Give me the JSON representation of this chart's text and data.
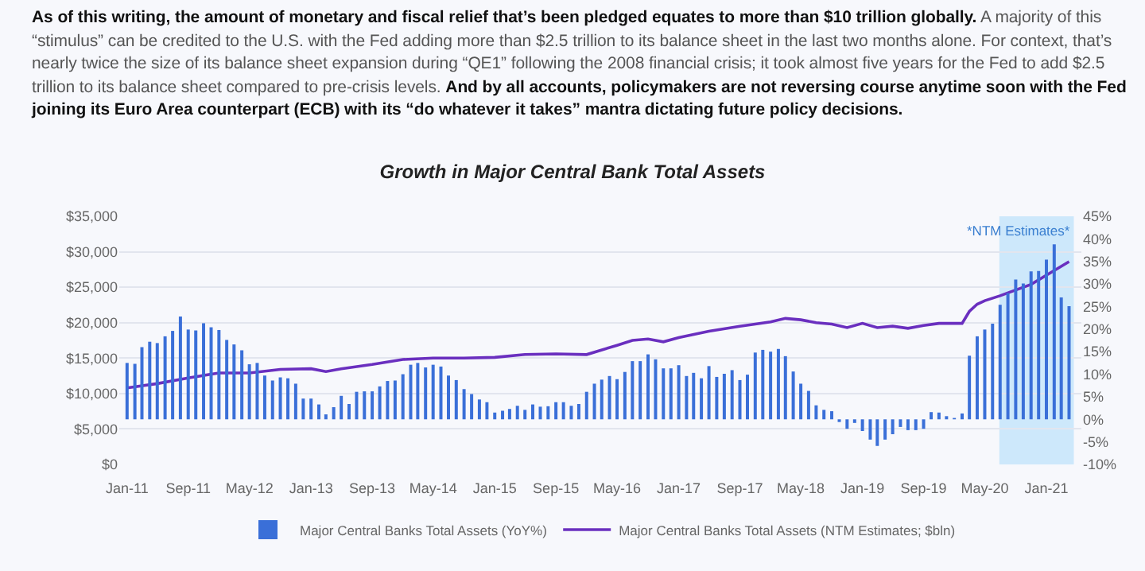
{
  "chart_data": {
    "type": "bar",
    "title": "Growth in Major Central Bank Total Assets",
    "annotations": [
      "As of this writing, the amount of monetary and fiscal relief that’s been pledged equates to more than $10 trillion globally.",
      "A majority of this “stimulus” can be credited to the U.S. with the Fed adding more than $2.5 trillion to its balance sheet in the last two months alone. For context, that’s nearly twice the size of its balance sheet expansion during “QE1” following the 2008 financial crisis; it took almost five years for the Fed to add $2.5 trillion to its balance sheet compared to pre-crisis levels.",
      "And by all accounts, policymakers are not reversing course anytime soon with the Fed joining its Euro Area counterpart (ECB) with its “do whatever it takes” mantra dictating future policy decisions."
    ],
    "x": [
      "2011-01",
      "2011-02",
      "2011-03",
      "2011-04",
      "2011-05",
      "2011-06",
      "2011-07",
      "2011-08",
      "2011-09",
      "2011-10",
      "2011-11",
      "2011-12",
      "2012-01",
      "2012-02",
      "2012-03",
      "2012-04",
      "2012-05",
      "2012-06",
      "2012-07",
      "2012-08",
      "2012-09",
      "2012-10",
      "2012-11",
      "2012-12",
      "2013-01",
      "2013-02",
      "2013-03",
      "2013-04",
      "2013-05",
      "2013-06",
      "2013-07",
      "2013-08",
      "2013-09",
      "2013-10",
      "2013-11",
      "2013-12",
      "2014-01",
      "2014-02",
      "2014-03",
      "2014-04",
      "2014-05",
      "2014-06",
      "2014-07",
      "2014-08",
      "2014-09",
      "2014-10",
      "2014-11",
      "2014-12",
      "2015-01",
      "2015-02",
      "2015-03",
      "2015-04",
      "2015-05",
      "2015-06",
      "2015-07",
      "2015-08",
      "2015-09",
      "2015-10",
      "2015-11",
      "2015-12",
      "2016-01",
      "2016-02",
      "2016-03",
      "2016-04",
      "2016-05",
      "2016-06",
      "2016-07",
      "2016-08",
      "2016-09",
      "2016-10",
      "2016-11",
      "2016-12",
      "2017-01",
      "2017-02",
      "2017-03",
      "2017-04",
      "2017-05",
      "2017-06",
      "2017-07",
      "2017-08",
      "2017-09",
      "2017-10",
      "2017-11",
      "2017-12",
      "2018-01",
      "2018-02",
      "2018-03",
      "2018-04",
      "2018-05",
      "2018-06",
      "2018-07",
      "2018-08",
      "2018-09",
      "2018-10",
      "2018-11",
      "2018-12",
      "2019-01",
      "2019-02",
      "2019-03",
      "2019-04",
      "2019-05",
      "2019-06",
      "2019-07",
      "2019-08",
      "2019-09",
      "2019-10",
      "2019-11",
      "2019-12",
      "2020-01",
      "2020-02",
      "2020-03",
      "2020-04",
      "2020-05",
      "2020-06",
      "2020-07",
      "2020-08",
      "2020-09",
      "2020-10",
      "2020-11",
      "2020-12",
      "2021-01",
      "2021-02",
      "2021-03",
      "2021-04"
    ],
    "series": [
      {
        "name": "Major Central Banks Total Assets (YoY%)",
        "axis": "y2",
        "color": "#3a6fd8",
        "values": [
          12.5,
          12.3,
          16.0,
          17.2,
          16.9,
          18.4,
          19.6,
          22.8,
          19.9,
          19.7,
          21.3,
          20.4,
          19.8,
          17.6,
          16.6,
          15.3,
          12.2,
          12.5,
          9.7,
          8.6,
          9.3,
          9.1,
          7.9,
          4.6,
          4.6,
          3.3,
          1.1,
          2.7,
          5.2,
          3.4,
          6.1,
          6.2,
          6.2,
          7.3,
          8.5,
          8.6,
          10.0,
          12.1,
          12.5,
          11.5,
          12.1,
          11.7,
          9.7,
          8.7,
          6.7,
          5.6,
          4.4,
          3.8,
          1.5,
          1.9,
          2.3,
          3.0,
          2.1,
          3.3,
          2.8,
          2.9,
          3.8,
          3.8,
          3.0,
          3.4,
          6.1,
          7.9,
          8.8,
          9.6,
          8.9,
          10.5,
          12.9,
          12.9,
          14.4,
          13.3,
          11.3,
          11.3,
          12.0,
          9.6,
          10.3,
          9.1,
          11.8,
          9.4,
          10.1,
          10.9,
          8.7,
          9.9,
          14.8,
          15.4,
          15.0,
          15.6,
          14.0,
          10.6,
          7.9,
          6.3,
          3.1,
          2.1,
          1.8,
          -0.6,
          -2.1,
          -0.8,
          -2.6,
          -4.5,
          -5.9,
          -4.5,
          -3.3,
          -1.7,
          -2.4,
          -2.4,
          -2.1,
          1.6,
          1.5,
          0.7,
          0.3,
          1.3,
          14.1,
          18.4,
          19.9,
          21.2,
          25.4,
          28.0,
          31.0,
          30.1,
          32.8,
          32.9,
          35.4,
          38.8,
          27.0,
          25.1
        ]
      },
      {
        "name": "Major Central Banks Total Assets (NTM Estimates; $bln)",
        "type": "line",
        "color": "#6a2fbf",
        "x": [
          "2011-01",
          "2011-05",
          "2011-09",
          "2012-01",
          "2012-05",
          "2012-09",
          "2013-01",
          "2013-03",
          "2013-05",
          "2013-09",
          "2014-01",
          "2014-05",
          "2014-09",
          "2015-01",
          "2015-05",
          "2015-09",
          "2016-01",
          "2016-05",
          "2016-07",
          "2016-09",
          "2016-11",
          "2017-01",
          "2017-05",
          "2017-09",
          "2018-01",
          "2018-03",
          "2018-05",
          "2018-07",
          "2018-09",
          "2018-11",
          "2019-01",
          "2019-03",
          "2019-05",
          "2019-07",
          "2019-09",
          "2019-11",
          "2020-01",
          "2020-02",
          "2020-03",
          "2020-04",
          "2020-05",
          "2020-07",
          "2020-11",
          "2021-04"
        ],
        "values": [
          10800,
          11400,
          12200,
          12900,
          12900,
          13400,
          13500,
          13100,
          13500,
          14100,
          14800,
          15000,
          15000,
          15100,
          15500,
          15600,
          15500,
          16800,
          17500,
          17700,
          17300,
          17900,
          18800,
          19500,
          20100,
          20600,
          20400,
          20000,
          19800,
          19300,
          19900,
          19300,
          19500,
          19200,
          19600,
          19900,
          19900,
          19900,
          21600,
          22600,
          23100,
          23800,
          25400,
          28600
        ]
      }
    ],
    "xlim": [
      "2010-12-01",
      "2021-05-20"
    ],
    "xticks": [
      {
        "value": "2011-01",
        "label": "Jan-11"
      },
      {
        "value": "2011-09",
        "label": "Sep-11"
      },
      {
        "value": "2012-05",
        "label": "May-12"
      },
      {
        "value": "2013-01",
        "label": "Jan-13"
      },
      {
        "value": "2013-09",
        "label": "Sep-13"
      },
      {
        "value": "2014-05",
        "label": "May-14"
      },
      {
        "value": "2015-01",
        "label": "Jan-15"
      },
      {
        "value": "2015-09",
        "label": "Sep-15"
      },
      {
        "value": "2016-05",
        "label": "May-16"
      },
      {
        "value": "2017-01",
        "label": "Jan-17"
      },
      {
        "value": "2017-09",
        "label": "Sep-17"
      },
      {
        "value": "2018-05",
        "label": "May-18"
      },
      {
        "value": "2019-01",
        "label": "Jan-19"
      },
      {
        "value": "2019-09",
        "label": "Sep-19"
      },
      {
        "value": "2020-05",
        "label": "May-20"
      },
      {
        "value": "2021-01",
        "label": "Jan-21"
      }
    ],
    "ylim": [
      0,
      35000
    ],
    "yticks": [
      {
        "value": 0,
        "label": "$0"
      },
      {
        "value": 5000,
        "label": "$5,000"
      },
      {
        "value": 10000,
        "label": "$10,000"
      },
      {
        "value": 15000,
        "label": "$15,000"
      },
      {
        "value": 20000,
        "label": "$20,000"
      },
      {
        "value": 25000,
        "label": "$25,000"
      },
      {
        "value": 30000,
        "label": "$30,000"
      },
      {
        "value": 35000,
        "label": "$35,000"
      }
    ],
    "y2lim": [
      -10,
      45
    ],
    "y2ticks": [
      {
        "value": -10,
        "label": "-10%"
      },
      {
        "value": -5,
        "label": "-5%"
      },
      {
        "value": 0,
        "label": "0%"
      },
      {
        "value": 5,
        "label": "5%"
      },
      {
        "value": 10,
        "label": "10%"
      },
      {
        "value": 15,
        "label": "15%"
      },
      {
        "value": 20,
        "label": "20%"
      },
      {
        "value": 25,
        "label": "25%"
      },
      {
        "value": 30,
        "label": "30%"
      },
      {
        "value": 35,
        "label": "35%"
      },
      {
        "value": 40,
        "label": "40%"
      },
      {
        "value": 45,
        "label": "45%"
      }
    ],
    "grid": "y",
    "legend": "bottom",
    "bands": [
      {
        "axis": "x",
        "from": "2020-06-28",
        "to": "2021-04-20",
        "label": "*NTM Estimates*",
        "color": "#cde8fb"
      }
    ]
  }
}
